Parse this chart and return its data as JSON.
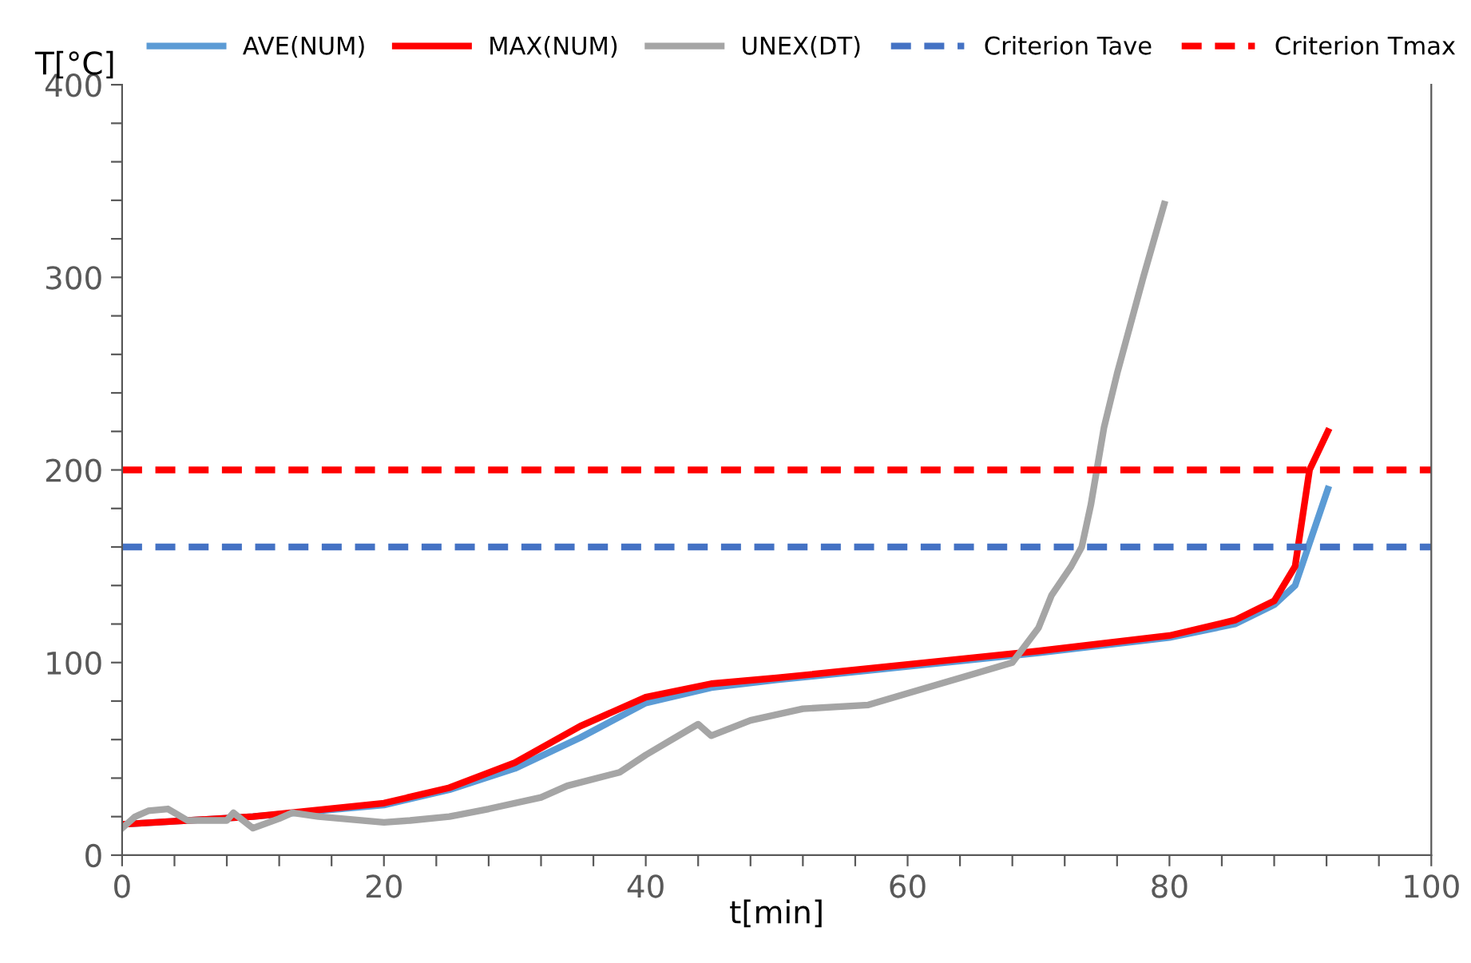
{
  "chart_data": {
    "type": "line",
    "xlabel": "t[min]",
    "ylabel": "T[°C]",
    "xlim": [
      0,
      100
    ],
    "ylim": [
      0,
      400
    ],
    "xticks": [
      0,
      {
        "value": 4,
        "label": null
      },
      {
        "value": 8,
        "label": null
      },
      {
        "value": 12,
        "label": null
      },
      {
        "value": 16,
        "label": null
      },
      20,
      {
        "value": 24,
        "label": null
      },
      {
        "value": 28,
        "label": null
      },
      {
        "value": 32,
        "label": null
      },
      {
        "value": 36,
        "label": null
      },
      40,
      {
        "value": 44,
        "label": null
      },
      {
        "value": 48,
        "label": null
      },
      {
        "value": 52,
        "label": null
      },
      {
        "value": 56,
        "label": null
      },
      60,
      {
        "value": 64,
        "label": null
      },
      {
        "value": 68,
        "label": null
      },
      {
        "value": 72,
        "label": null
      },
      {
        "value": 76,
        "label": null
      },
      80,
      {
        "value": 84,
        "label": null
      },
      {
        "value": 88,
        "label": null
      },
      {
        "value": 92,
        "label": null
      },
      {
        "value": 96,
        "label": null
      },
      100
    ],
    "yticks": [
      0,
      {
        "value": 20,
        "label": null
      },
      {
        "value": 40,
        "label": null
      },
      {
        "value": 60,
        "label": null
      },
      {
        "value": 80,
        "label": null
      },
      100,
      {
        "value": 120,
        "label": null
      },
      {
        "value": 140,
        "label": null
      },
      {
        "value": 160,
        "label": null
      },
      {
        "value": 180,
        "label": null
      },
      200,
      {
        "value": 220,
        "label": null
      },
      {
        "value": 240,
        "label": null
      },
      {
        "value": 260,
        "label": null
      },
      {
        "value": 280,
        "label": null
      },
      300,
      {
        "value": 320,
        "label": null
      },
      {
        "value": 340,
        "label": null
      },
      {
        "value": 360,
        "label": null
      },
      {
        "value": 380,
        "label": null
      },
      400
    ],
    "grid": false,
    "legend": "top",
    "marker": "none",
    "series": [
      {
        "name": "AVE(NUM)",
        "color": "#5b9bd5",
        "line_style": "solid",
        "x": [
          0,
          10,
          20,
          25,
          30,
          35,
          40,
          45,
          50,
          60,
          70,
          80,
          85,
          88,
          89.6,
          92.1
        ],
        "values": [
          16,
          20,
          26,
          34,
          45,
          61,
          79,
          87,
          91,
          98,
          105,
          113,
          120,
          130,
          140,
          190
        ]
      },
      {
        "name": "MAX(NUM)",
        "color": "#ff0000",
        "line_style": "solid",
        "x": [
          0,
          10,
          20,
          25,
          30,
          35,
          40,
          45,
          50,
          60,
          70,
          80,
          85,
          88,
          89.6,
          90.7,
          92.1
        ],
        "values": [
          16,
          20,
          27,
          35,
          48,
          67,
          82,
          89,
          92,
          99,
          106,
          114,
          122,
          132,
          150,
          200,
          220
        ]
      },
      {
        "name": "UNEX(DT)",
        "color": "#a5a5a5",
        "line_style": "solid",
        "x": [
          0,
          1,
          2,
          3.5,
          5,
          8,
          8.5,
          10,
          12,
          13,
          15,
          20,
          22,
          25,
          28,
          32,
          34,
          38,
          40,
          42,
          44,
          45,
          48,
          52,
          57,
          60,
          65,
          68,
          70,
          71,
          72.5,
          73.3,
          74,
          75,
          76,
          78,
          79.6
        ],
        "values": [
          14,
          20,
          23,
          24,
          18,
          18,
          22,
          14,
          19,
          22,
          20,
          17,
          18,
          20,
          24,
          30,
          36,
          43,
          52,
          60,
          68,
          62,
          70,
          76,
          78,
          84,
          94,
          100,
          118,
          135,
          150,
          160,
          182,
          222,
          250,
          300,
          338
        ]
      },
      {
        "name": "Criterion Tave",
        "color": "#4472c4",
        "line_style": "dashed",
        "x": [
          0,
          100
        ],
        "values": [
          160,
          160
        ]
      },
      {
        "name": "Criterion Tmax",
        "color": "#ff0000",
        "line_style": "dashed",
        "x": [
          0,
          100
        ],
        "values": [
          200,
          200
        ]
      }
    ]
  }
}
